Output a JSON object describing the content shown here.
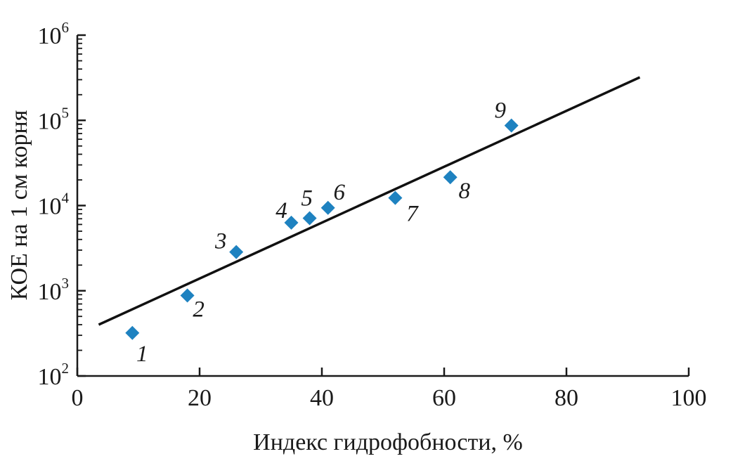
{
  "chart_data": {
    "type": "scatter",
    "xlabel": "Индекс гидрофобности, %",
    "ylabel": "КОЕ на 1 см корня",
    "xlim": [
      0,
      100
    ],
    "ylim_log10": [
      2,
      6
    ],
    "yscale": "log",
    "x_ticks": [
      0,
      20,
      40,
      60,
      80,
      100
    ],
    "y_ticks": [
      {
        "base": "10",
        "exp": "2"
      },
      {
        "base": "10",
        "exp": "3"
      },
      {
        "base": "10",
        "exp": "4"
      },
      {
        "base": "10",
        "exp": "5"
      },
      {
        "base": "10",
        "exp": "6"
      }
    ],
    "points": [
      {
        "label": "1",
        "x": 9,
        "y": 320
      },
      {
        "label": "2",
        "x": 18,
        "y": 880
      },
      {
        "label": "3",
        "x": 26,
        "y": 2850
      },
      {
        "label": "4",
        "x": 35,
        "y": 6300
      },
      {
        "label": "5",
        "x": 38,
        "y": 7100
      },
      {
        "label": "6",
        "x": 41,
        "y": 9400
      },
      {
        "label": "7",
        "x": 52,
        "y": 12300
      },
      {
        "label": "8",
        "x": 61,
        "y": 21500
      },
      {
        "label": "9",
        "x": 71,
        "y": 87000
      }
    ],
    "trend_line": [
      {
        "x": 3.5,
        "y": 400
      },
      {
        "x": 92,
        "y": 320000
      }
    ],
    "colors": {
      "points": "#1e82c0",
      "line": "#111111",
      "axes": "#1a1a1a"
    },
    "grid": false,
    "legend": "none"
  }
}
